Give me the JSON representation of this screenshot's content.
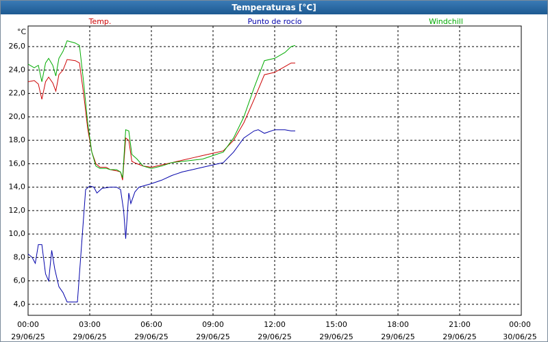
{
  "window_title": "Temperaturas [°C]",
  "chart_data": {
    "type": "line",
    "ylabel": "°C",
    "xlim": [
      0,
      24
    ],
    "ylim": [
      3.06,
      27.76
    ],
    "grid": true,
    "xticks": [
      {
        "value": 0,
        "label": "00:00\n29/06/25"
      },
      {
        "value": 3,
        "label": "03:00\n29/06/25"
      },
      {
        "value": 6,
        "label": "06:00\n29/06/25"
      },
      {
        "value": 9,
        "label": "09:00\n29/06/25"
      },
      {
        "value": 12,
        "label": "12:00\n29/06/25"
      },
      {
        "value": 15,
        "label": "15:00\n29/06/25"
      },
      {
        "value": 18,
        "label": "18:00\n29/06/25"
      },
      {
        "value": 21,
        "label": "21:00\n29/06/25"
      },
      {
        "value": 24,
        "label": "00:00\n30/06/25"
      }
    ],
    "yticks": [
      {
        "value": 4,
        "label": "4,0"
      },
      {
        "value": 6,
        "label": "6,0"
      },
      {
        "value": 8,
        "label": "8,0"
      },
      {
        "value": 10,
        "label": "10,0"
      },
      {
        "value": 12,
        "label": "12,0"
      },
      {
        "value": 14,
        "label": "14,0"
      },
      {
        "value": 16,
        "label": "16,0"
      },
      {
        "value": 18,
        "label": "18,0"
      },
      {
        "value": 20,
        "label": "20,0"
      },
      {
        "value": 22,
        "label": "22,0"
      },
      {
        "value": 24,
        "label": "24,0"
      },
      {
        "value": 26,
        "label": "26,0"
      }
    ],
    "series": [
      {
        "name": "Temp.",
        "color": "#cc0000",
        "x": [
          0,
          0.3,
          0.5,
          0.67,
          0.85,
          1.0,
          1.2,
          1.35,
          1.5,
          1.7,
          1.9,
          2.3,
          2.5,
          2.7,
          2.9,
          3.1,
          3.3,
          3.5,
          3.8,
          4.0,
          4.3,
          4.5,
          4.6,
          4.75,
          4.9,
          5.05,
          5.3,
          5.6,
          6.0,
          6.5,
          7.0,
          7.5,
          8.0,
          8.5,
          9.0,
          9.5,
          10.0,
          10.5,
          11.0,
          11.5,
          12.0,
          12.5,
          12.8,
          13.0
        ],
        "values": [
          23.0,
          23.1,
          22.8,
          21.5,
          23.0,
          23.4,
          22.9,
          22.2,
          23.6,
          24.0,
          24.9,
          24.8,
          24.6,
          22.0,
          19.0,
          17.0,
          16.0,
          15.7,
          15.7,
          15.5,
          15.4,
          15.3,
          14.6,
          18.2,
          18.0,
          16.2,
          16.0,
          15.8,
          15.7,
          15.9,
          16.1,
          16.3,
          16.5,
          16.7,
          16.9,
          17.1,
          18.0,
          19.5,
          21.5,
          23.6,
          23.8,
          24.3,
          24.6,
          24.6
        ]
      },
      {
        "name": "Punto de rocío",
        "color": "#0000aa",
        "x": [
          0,
          0.2,
          0.35,
          0.5,
          0.67,
          0.85,
          1.0,
          1.15,
          1.3,
          1.5,
          1.7,
          1.9,
          2.2,
          2.4,
          2.6,
          2.8,
          3.0,
          3.2,
          3.35,
          3.6,
          4.0,
          4.3,
          4.5,
          4.65,
          4.75,
          4.9,
          5.0,
          5.2,
          5.4,
          6.0,
          6.5,
          7.0,
          7.5,
          8.0,
          8.5,
          9.0,
          9.5,
          10.0,
          10.5,
          11.0,
          11.2,
          11.5,
          12.0,
          12.5,
          12.8,
          13.0
        ],
        "values": [
          8.3,
          8.0,
          7.5,
          9.1,
          9.1,
          6.6,
          6.0,
          8.6,
          7.0,
          5.5,
          5.0,
          4.2,
          4.2,
          4.2,
          9.0,
          13.8,
          14.1,
          14.0,
          13.5,
          13.9,
          14.0,
          14.0,
          13.8,
          12.0,
          9.6,
          13.5,
          12.6,
          13.6,
          14.0,
          14.3,
          14.6,
          15.0,
          15.3,
          15.5,
          15.7,
          15.9,
          16.1,
          17.0,
          18.2,
          18.8,
          18.9,
          18.6,
          18.9,
          18.9,
          18.8,
          18.8
        ]
      },
      {
        "name": "Windchill",
        "color": "#00aa00",
        "x": [
          0,
          0.3,
          0.5,
          0.67,
          0.85,
          1.0,
          1.2,
          1.35,
          1.5,
          1.7,
          1.9,
          2.3,
          2.5,
          2.7,
          2.9,
          3.1,
          3.3,
          3.5,
          3.8,
          4.0,
          4.3,
          4.5,
          4.6,
          4.75,
          4.9,
          5.05,
          5.3,
          5.6,
          6.0,
          6.5,
          7.0,
          7.5,
          8.0,
          8.5,
          9.0,
          9.5,
          10.0,
          10.5,
          11.0,
          11.5,
          12.0,
          12.5,
          12.8,
          13.0
        ],
        "values": [
          24.5,
          24.2,
          24.4,
          23.0,
          24.6,
          25.0,
          24.4,
          23.5,
          25.0,
          25.6,
          26.5,
          26.3,
          26.1,
          23.0,
          19.5,
          17.0,
          15.8,
          15.6,
          15.6,
          15.5,
          15.5,
          15.3,
          14.8,
          18.9,
          18.8,
          16.8,
          16.4,
          15.8,
          15.6,
          15.8,
          16.1,
          16.2,
          16.3,
          16.4,
          16.7,
          17.0,
          18.2,
          20.0,
          22.5,
          24.8,
          25.0,
          25.5,
          26.0,
          26.1
        ]
      }
    ]
  }
}
